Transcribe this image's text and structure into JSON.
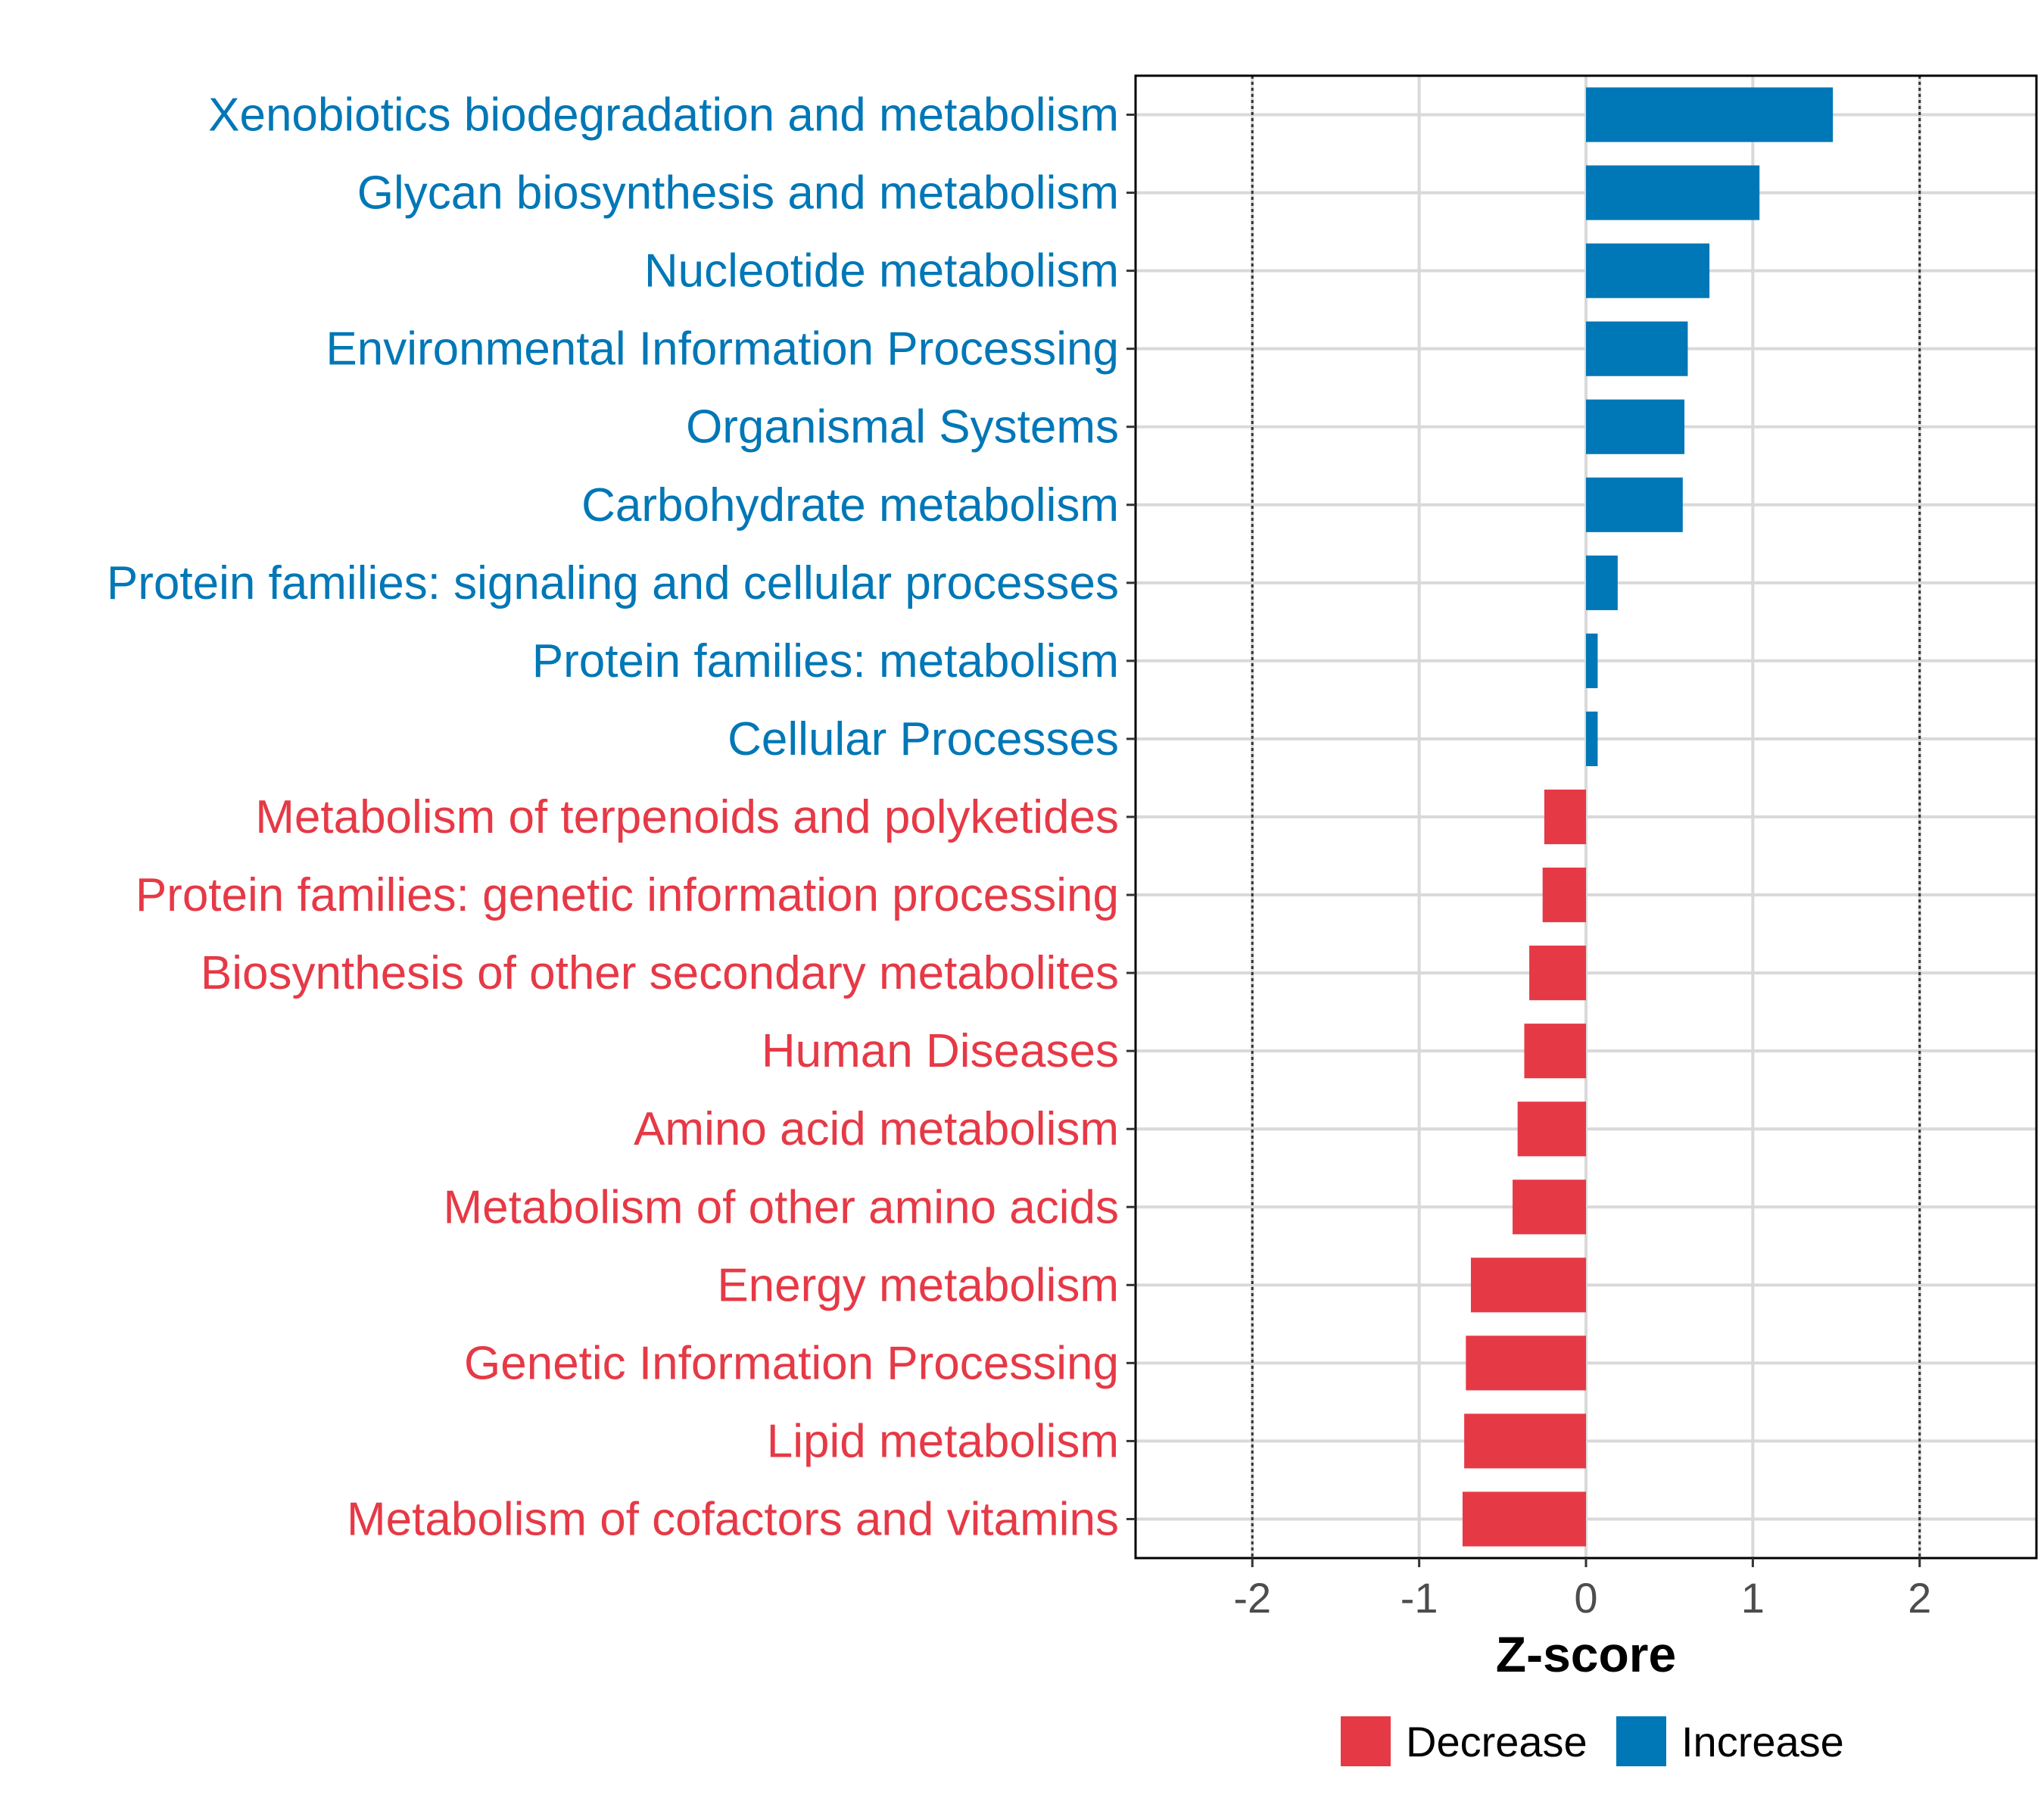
{
  "chart_data": {
    "type": "bar",
    "orientation": "horizontal",
    "title": "",
    "xlabel": "Z-score",
    "ylabel": "",
    "xlim": [
      -2.7,
      2.7
    ],
    "xticks": [
      -2,
      -1,
      0,
      1,
      2
    ],
    "xtick_labels": [
      "-2",
      "-1",
      "0",
      "1",
      "2"
    ],
    "reference_lines": [
      -2,
      2
    ],
    "grid": true,
    "categories": [
      "Xenobiotics biodegradation and metabolism",
      "Glycan biosynthesis and metabolism",
      "Nucleotide metabolism",
      "Environmental Information Processing",
      "Organismal Systems",
      "Carbohydrate metabolism",
      "Protein families: signaling and cellular processes",
      "Protein families: metabolism",
      "Cellular Processes",
      "Metabolism of terpenoids and polyketides",
      "Protein families: genetic information processing",
      "Biosynthesis of other secondary metabolites",
      "Human Diseases",
      "Amino acid metabolism",
      "Metabolism of other amino acids",
      "Energy metabolism",
      "Genetic Information Processing",
      "Lipid metabolism",
      "Metabolism of cofactors and vitamins"
    ],
    "values": [
      1.48,
      1.04,
      0.74,
      0.61,
      0.59,
      0.58,
      0.19,
      0.07,
      0.07,
      -0.25,
      -0.26,
      -0.34,
      -0.37,
      -0.41,
      -0.44,
      -0.69,
      -0.72,
      -0.73,
      -0.74
    ],
    "groups": [
      "Increase",
      "Increase",
      "Increase",
      "Increase",
      "Increase",
      "Increase",
      "Increase",
      "Increase",
      "Increase",
      "Decrease",
      "Decrease",
      "Decrease",
      "Decrease",
      "Decrease",
      "Decrease",
      "Decrease",
      "Decrease",
      "Decrease",
      "Decrease"
    ],
    "colors": {
      "Decrease": "#E63946",
      "Increase": "#0077B6"
    },
    "legend": {
      "position": "bottom",
      "entries": [
        {
          "label": "Decrease",
          "color": "#E63946"
        },
        {
          "label": "Increase",
          "color": "#0077B6"
        }
      ]
    }
  }
}
